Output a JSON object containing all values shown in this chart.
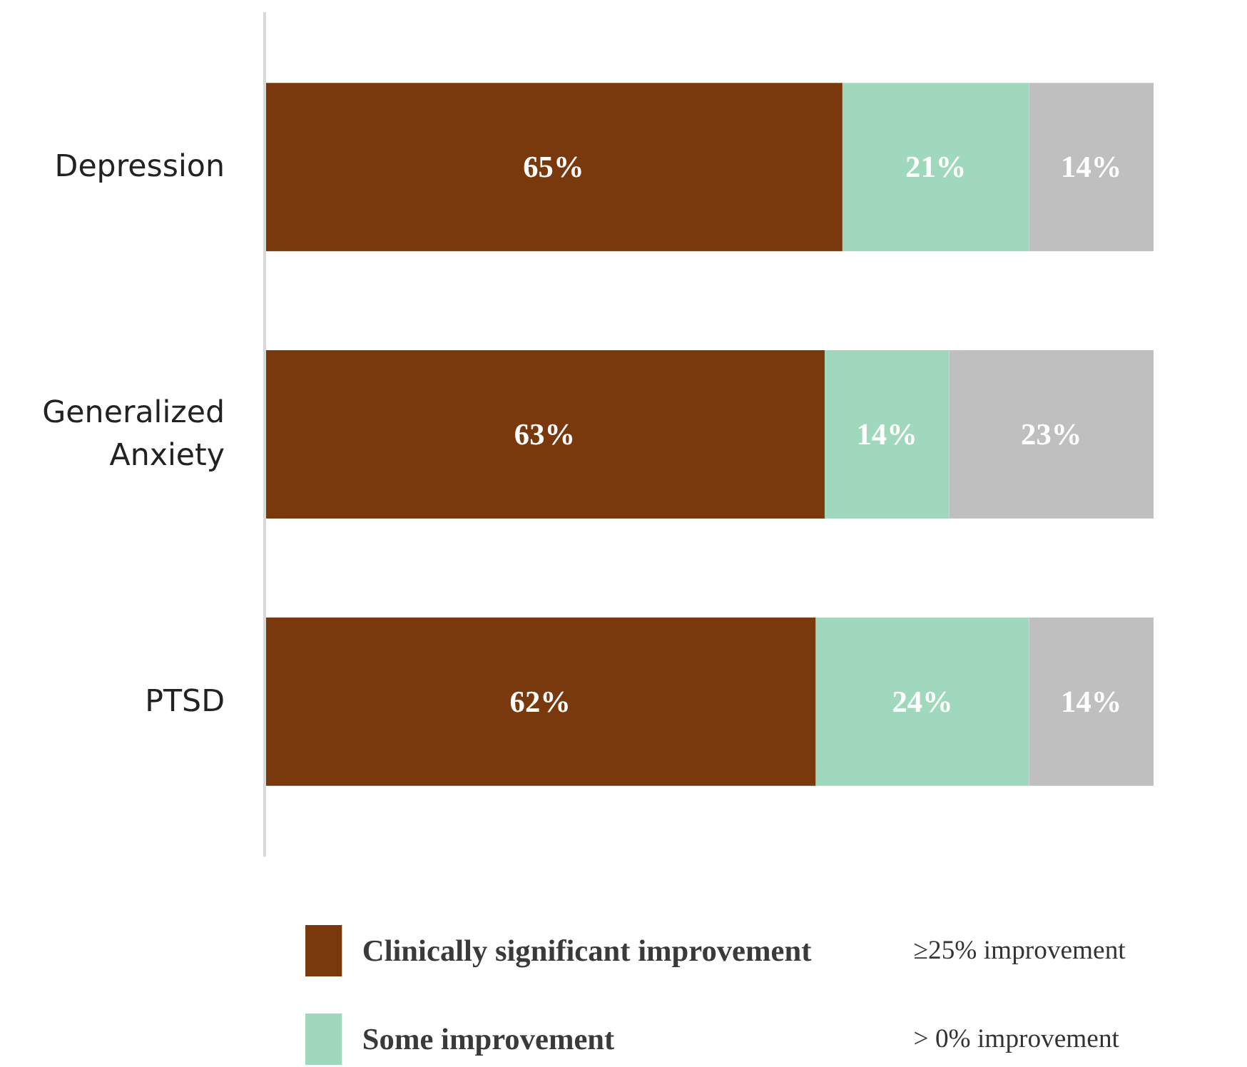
{
  "chart_data": {
    "type": "bar",
    "orientation": "horizontal",
    "stacked": true,
    "categories": [
      "Depression",
      "Generalized\nAnxiety",
      "PTSD"
    ],
    "series": [
      {
        "name": "Clinically significant improvement",
        "color": "#7a390c",
        "values": [
          65,
          63,
          62
        ],
        "value_labels": [
          "65%",
          "63%",
          "62%"
        ]
      },
      {
        "name": "Some improvement",
        "color": "#9fd8bd",
        "values": [
          21,
          14,
          24
        ],
        "value_labels": [
          "21%",
          "14%",
          "24%"
        ]
      },
      {
        "color": "#bfbfbf",
        "values": [
          14,
          23,
          14
        ],
        "value_labels": [
          "14%",
          "23%",
          "14%"
        ]
      }
    ],
    "legend": "bottom",
    "grid": false,
    "annotations": [
      "≥25% improvement",
      "> 0% improvement"
    ]
  }
}
